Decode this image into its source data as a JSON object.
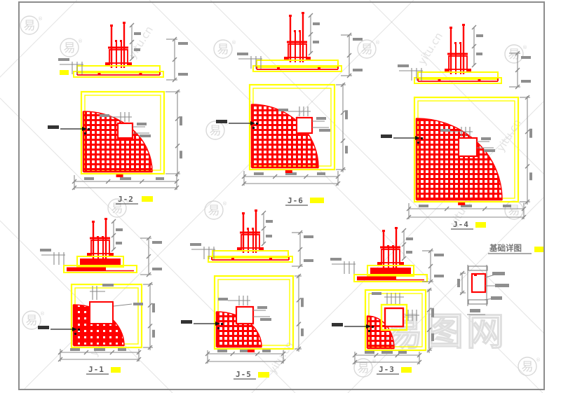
{
  "page": {
    "background": "#ffffff",
    "sheet_border_color": "#8c8c8c"
  },
  "colors": {
    "rebar_red": "#ff0000",
    "foundation_yellow": "#ffff00",
    "dimension_gray": "#8a8a8a",
    "label_gray": "#5f5f5f",
    "highlight_yellow": "#ffff00",
    "watermark_gray": "#cfcfcf"
  },
  "details": [
    {
      "id": "j2",
      "label": "J-2"
    },
    {
      "id": "j6",
      "label": "J-6"
    },
    {
      "id": "j4",
      "label": "J-4"
    },
    {
      "id": "j1",
      "label": "J-1"
    },
    {
      "id": "j5",
      "label": "J-5"
    },
    {
      "id": "j3",
      "label": "J-3"
    }
  ],
  "section_detail": {
    "title": "基础详图"
  },
  "watermarks": {
    "seal_char": "易",
    "registered_symbol": "®",
    "site_text": "易图网",
    "diagonal_text": "yitu.cn"
  }
}
